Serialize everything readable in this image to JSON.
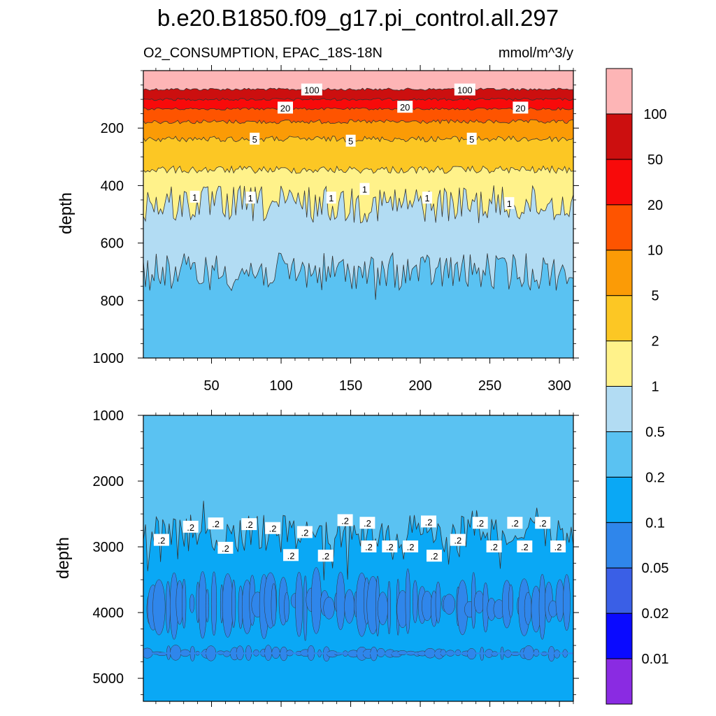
{
  "chart_data": {
    "type": "contour",
    "title": "b.e20.B1850.f09_g17.pi_control.all.297",
    "left_subtitle": "O2_CONSUMPTION, EPAC_18S-18N",
    "units": "mmol/m^3/y",
    "xlim": [
      1,
      310
    ],
    "x_ticks": [
      50,
      100,
      150,
      200,
      250,
      300
    ],
    "colorbar": {
      "levels": [
        "0.01",
        "0.02",
        "0.05",
        "0.1",
        "0.2",
        "0.5",
        "1",
        "2",
        "5",
        "10",
        "20",
        "50",
        "100"
      ],
      "colors": [
        "#8a2be2",
        "#0a0aff",
        "#3a5fe6",
        "#2f86eb",
        "#0aa8f5",
        "#5ac2f2",
        "#b2dcf3",
        "#fff28a",
        "#fcc724",
        "#fb9b06",
        "#fe5400",
        "#f80a0a",
        "#cc0f0f",
        "#fdb5b6"
      ]
    },
    "panels": [
      {
        "name": "upper",
        "ylabel": "depth",
        "ylim": [
          1000,
          0
        ],
        "y_ticks": [
          200,
          400,
          600,
          800,
          1000
        ],
        "bands": [
          {
            "level": ">100",
            "from": 0,
            "to": 65
          },
          {
            "level": "50-100",
            "from": 65,
            "to": 100
          },
          {
            "level": "20-50",
            "from": 100,
            "to": 133
          },
          {
            "level": "10-20",
            "from": 133,
            "to": 178
          },
          {
            "level": "5-10",
            "from": 178,
            "to": 238
          },
          {
            "level": "2-5",
            "from": 238,
            "to": 345
          },
          {
            "level": "1-2",
            "from": 345,
            "to": 465
          },
          {
            "level": "0.5-1",
            "from": 465,
            "to": 700
          },
          {
            "level": "0.2-0.5",
            "from": 700,
            "to": 1000
          }
        ],
        "contour_labels": [
          {
            "text": "100",
            "x": 122,
            "y": 67
          },
          {
            "text": "100",
            "x": 232,
            "y": 67
          },
          {
            "text": "20",
            "x": 103,
            "y": 130
          },
          {
            "text": "20",
            "x": 189,
            "y": 127
          },
          {
            "text": "20",
            "x": 272,
            "y": 130
          },
          {
            "text": "5",
            "x": 81,
            "y": 238
          },
          {
            "text": "5",
            "x": 150,
            "y": 245
          },
          {
            "text": "5",
            "x": 237,
            "y": 238
          },
          {
            "text": "1",
            "x": 38,
            "y": 440
          },
          {
            "text": "1",
            "x": 78,
            "y": 443
          },
          {
            "text": "1",
            "x": 136,
            "y": 443
          },
          {
            "text": "1",
            "x": 160,
            "y": 413
          },
          {
            "text": "1",
            "x": 205,
            "y": 443
          },
          {
            "text": "1",
            "x": 264,
            "y": 462
          }
        ]
      },
      {
        "name": "lower",
        "ylabel": "depth",
        "ylim": [
          5350,
          1000
        ],
        "y_ticks": [
          1000,
          2000,
          3000,
          4000,
          5000
        ],
        "bands": [
          {
            "level": "0.2-0.5",
            "from": 1000,
            "to": 2800
          },
          {
            "level": "0.1-0.2",
            "from": 2800,
            "to": 5350
          }
        ],
        "patches": [
          {
            "level": "0.05-0.1",
            "depth": 3880,
            "note": "lenses along 3600-4250"
          },
          {
            "level": "0.05-0.1",
            "depth": 4620,
            "note": "thin streaks"
          }
        ],
        "contour_labels": [
          {
            "text": ".2",
            "x": 14,
            "y": 2900
          },
          {
            "text": ".2",
            "x": 35,
            "y": 2700
          },
          {
            "text": ".2",
            "x": 53,
            "y": 2650
          },
          {
            "text": ".2",
            "x": 60,
            "y": 3020
          },
          {
            "text": ".2",
            "x": 77,
            "y": 2660
          },
          {
            "text": ".2",
            "x": 94,
            "y": 2720
          },
          {
            "text": ".2",
            "x": 107,
            "y": 3130
          },
          {
            "text": ".2",
            "x": 117,
            "y": 2780
          },
          {
            "text": ".2",
            "x": 132,
            "y": 3140
          },
          {
            "text": ".2",
            "x": 146,
            "y": 2600
          },
          {
            "text": ".2",
            "x": 162,
            "y": 2640
          },
          {
            "text": ".2",
            "x": 163,
            "y": 3000
          },
          {
            "text": ".2",
            "x": 178,
            "y": 3000
          },
          {
            "text": ".2",
            "x": 193,
            "y": 3000
          },
          {
            "text": ".2",
            "x": 206,
            "y": 2620
          },
          {
            "text": ".2",
            "x": 210,
            "y": 3140
          },
          {
            "text": ".2",
            "x": 227,
            "y": 2900
          },
          {
            "text": ".2",
            "x": 243,
            "y": 2640
          },
          {
            "text": ".2",
            "x": 253,
            "y": 3000
          },
          {
            "text": ".2",
            "x": 268,
            "y": 2640
          },
          {
            "text": ".2",
            "x": 275,
            "y": 3000
          },
          {
            "text": ".2",
            "x": 288,
            "y": 2640
          },
          {
            "text": ".2",
            "x": 299,
            "y": 3000
          }
        ]
      }
    ]
  }
}
